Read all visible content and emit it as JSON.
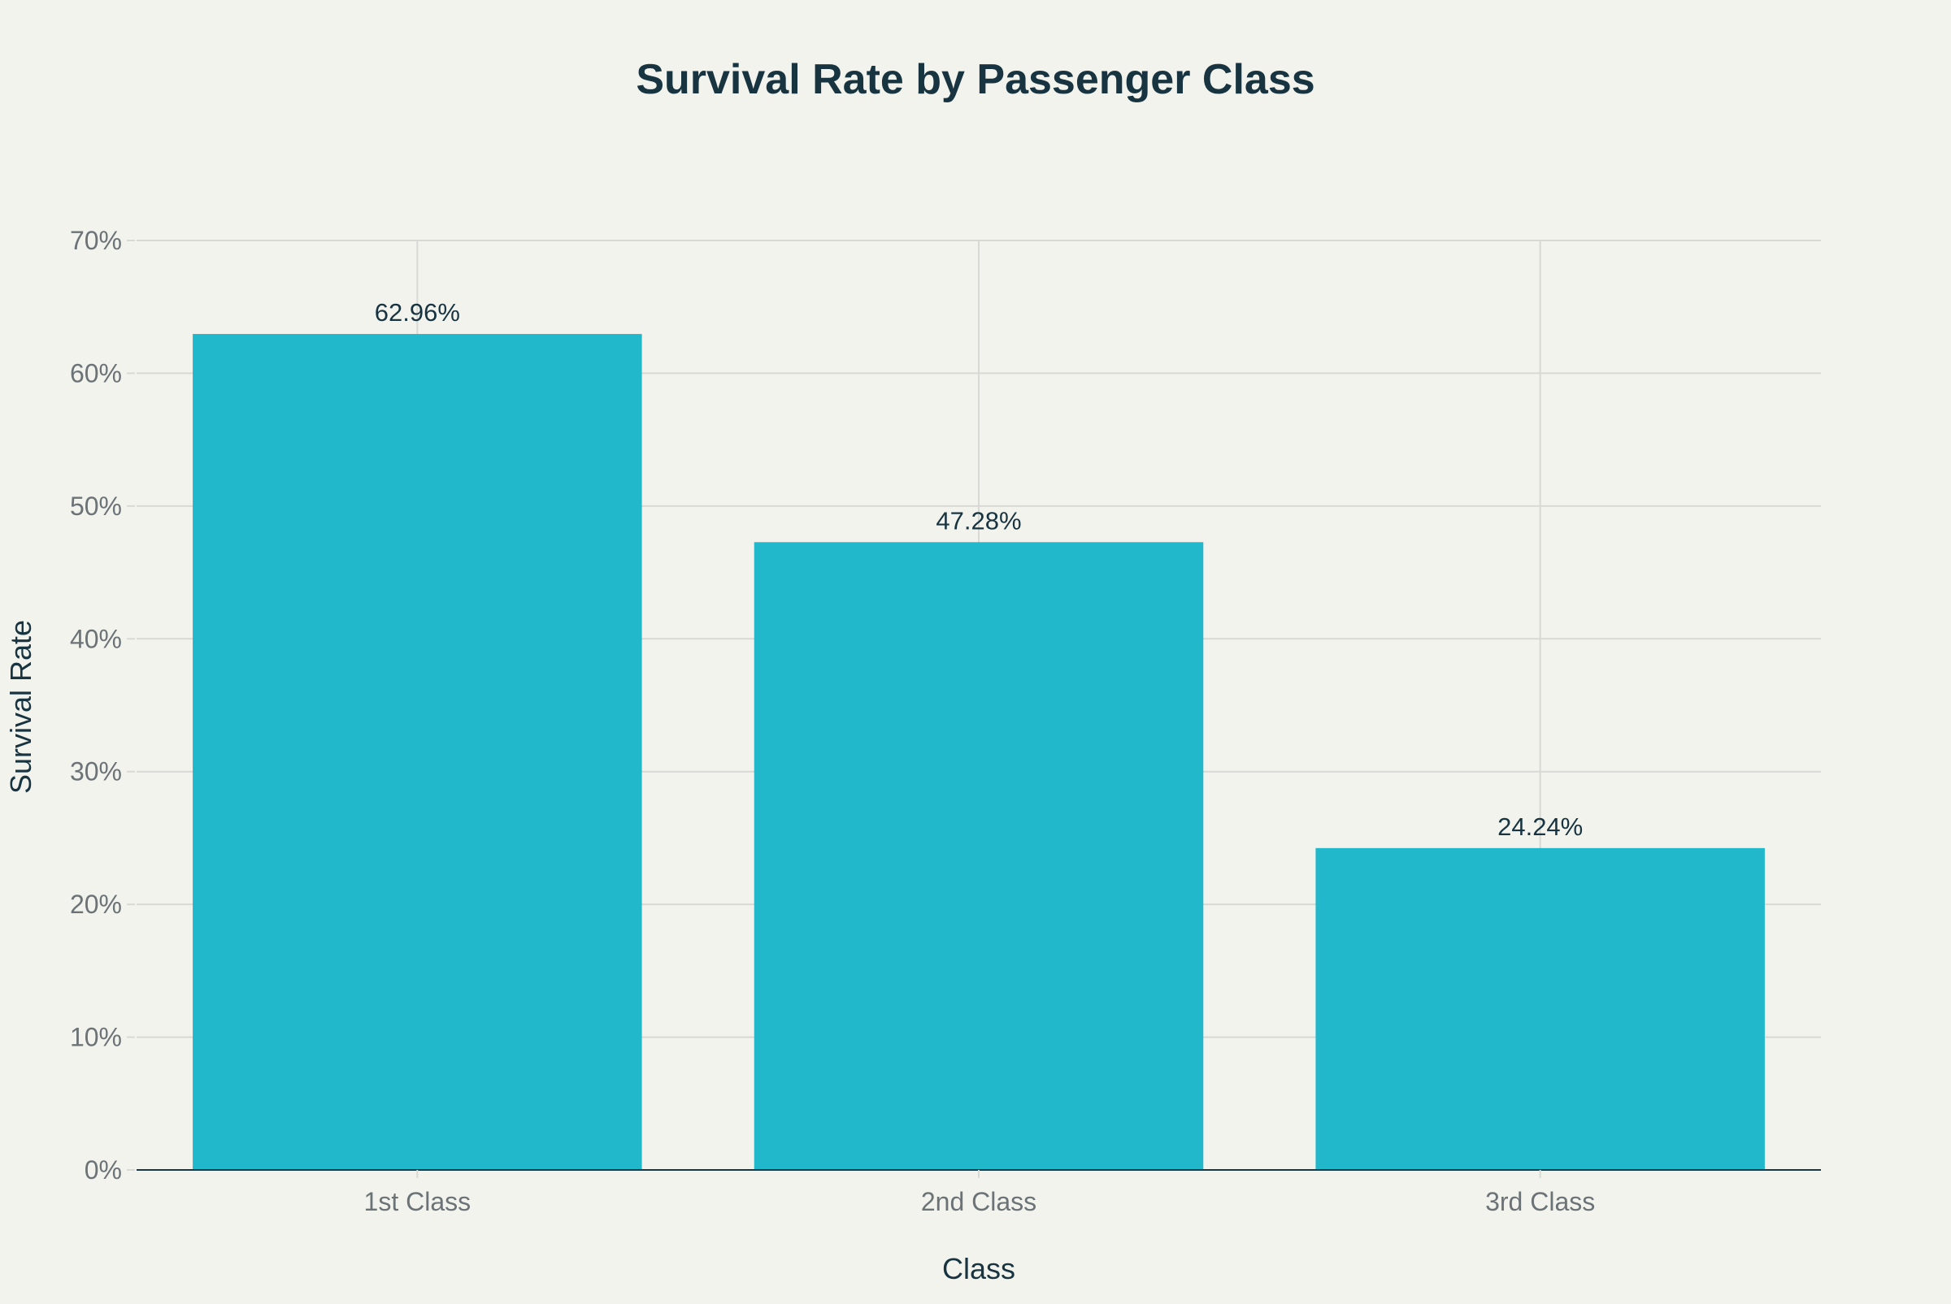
{
  "chart_data": {
    "type": "bar",
    "title": "Survival Rate by Passenger Class",
    "xlabel": "Class",
    "ylabel": "Survival Rate",
    "categories": [
      "1st Class",
      "2nd Class",
      "3rd Class"
    ],
    "values": [
      62.96,
      47.28,
      24.24
    ],
    "data_labels": [
      "62.96%",
      "47.28%",
      "24.24%"
    ],
    "ylim": [
      0,
      70
    ],
    "yticks": [
      0,
      10,
      20,
      30,
      40,
      50,
      60,
      70
    ],
    "ytick_labels": [
      "0%",
      "10%",
      "20%",
      "30%",
      "40%",
      "50%",
      "60%",
      "70%"
    ],
    "grid": true,
    "colors": {
      "bar": "#22b8cc",
      "background": "#f3f3ee",
      "grid": "#d8d8d4",
      "axis": "#173440"
    }
  }
}
